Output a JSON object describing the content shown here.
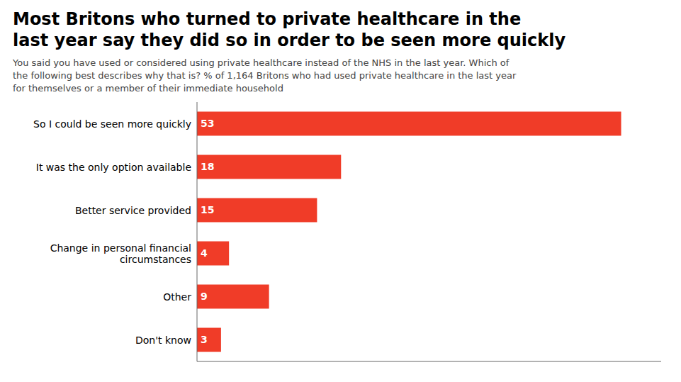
{
  "chart_data": {
    "type": "bar",
    "orientation": "horizontal",
    "title": "Most Britons who turned to private healthcare in the\nlast year say they did so in order to be seen more quickly",
    "subtitle": "You said you have used or considered using private healthcare instead of the NHS in the last year. Which of\nthe following best describes why that is? % of 1,164 Britons who had used private healthcare in the last year\nfor themselves or a member of their immediate household",
    "categories": [
      "So I could be seen more quickly",
      "It was the only option available",
      "Better service provided",
      "Change in personal financial\ncircumstances",
      "Other",
      "Don't know"
    ],
    "values": [
      53,
      18,
      15,
      4,
      9,
      3
    ],
    "color": "#f03c28",
    "xlim": [
      0,
      58
    ],
    "data_labels": true,
    "tick_labels": "y"
  }
}
